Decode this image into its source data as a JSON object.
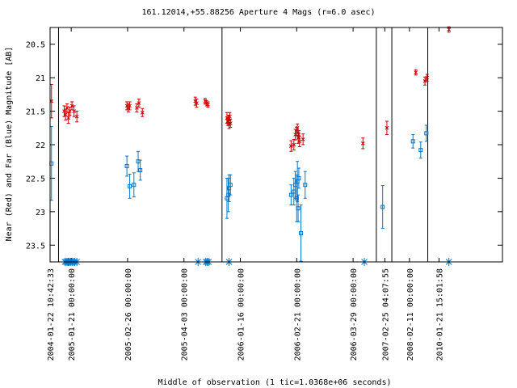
{
  "chart_data": {
    "type": "scatter",
    "title": "161.12014,+55.88256   Aperture 4 Mags (r=6.0 asec)",
    "xlabel": "Middle of observation (1 tic=1.0368e+06 seconds)",
    "ylabel": "Near (Red) and Far (Blue) Magnitude [AB]",
    "y_inverted": true,
    "ylim": [
      23.75,
      20.25
    ],
    "xlim": [
      0,
      64.2
    ],
    "y_ticks": [
      20.5,
      21,
      21.5,
      22,
      22.5,
      23,
      23.5
    ],
    "y_tick_labels": [
      "20.5",
      "21",
      "21.5",
      "22",
      "22.5",
      "23",
      "23.5"
    ],
    "x_ticks": [
      {
        "x": 0.0,
        "label": "2004-01-22 10:42:33"
      },
      {
        "x": 3.0,
        "label": "2005-01-21 00:00:00"
      },
      {
        "x": 11.0,
        "label": "2005-02-26 00:00:00"
      },
      {
        "x": 19.0,
        "label": "2005-04-03 00:00:00"
      },
      {
        "x": 27.0,
        "label": "2006-01-16 00:00:00"
      },
      {
        "x": 35.0,
        "label": "2006-02-21 00:00:00"
      },
      {
        "x": 43.0,
        "label": "2006-03-29 00:00:00"
      },
      {
        "x": 47.5,
        "label": "2007-02-25 04:07:55"
      },
      {
        "x": 51.0,
        "label": "2008-02-11 00:00:00"
      },
      {
        "x": 55.2,
        "label": "2010-01-21 15:01:58"
      }
    ],
    "segment_breaks": [
      1.2,
      24.4,
      46.3,
      48.5,
      53.6
    ],
    "series": [
      {
        "color": "#cc0000",
        "marker": "x",
        "points": [
          [
            0.2,
            21.35,
            0.25
          ],
          [
            2.0,
            21.5,
            0.08
          ],
          [
            2.2,
            21.55,
            0.08
          ],
          [
            2.4,
            21.45,
            0.06
          ],
          [
            2.6,
            21.6,
            0.08
          ],
          [
            2.8,
            21.5,
            0.06
          ],
          [
            3.1,
            21.42,
            0.06
          ],
          [
            3.4,
            21.5,
            0.08
          ],
          [
            3.8,
            21.58,
            0.08
          ],
          [
            10.9,
            21.42,
            0.06
          ],
          [
            11.1,
            21.45,
            0.06
          ],
          [
            11.3,
            21.42,
            0.06
          ],
          [
            12.3,
            21.45,
            0.06
          ],
          [
            12.6,
            21.38,
            0.06
          ],
          [
            13.1,
            21.52,
            0.06
          ],
          [
            20.6,
            21.35,
            0.06
          ],
          [
            20.8,
            21.38,
            0.06
          ],
          [
            22.0,
            21.35,
            0.04
          ],
          [
            22.2,
            21.38,
            0.04
          ],
          [
            22.4,
            21.4,
            0.04
          ],
          [
            25.1,
            21.6,
            0.08
          ],
          [
            25.2,
            21.65,
            0.06
          ],
          [
            25.3,
            21.62,
            0.06
          ],
          [
            25.4,
            21.7,
            0.06
          ],
          [
            25.5,
            21.58,
            0.06
          ],
          [
            25.6,
            21.68,
            0.06
          ],
          [
            34.2,
            22.02,
            0.08
          ],
          [
            34.6,
            22.0,
            0.08
          ],
          [
            34.8,
            21.85,
            0.08
          ],
          [
            35.0,
            21.8,
            0.06
          ],
          [
            35.1,
            21.75,
            0.06
          ],
          [
            35.2,
            21.9,
            0.08
          ],
          [
            35.3,
            21.85,
            0.06
          ],
          [
            35.4,
            21.95,
            0.08
          ],
          [
            35.9,
            21.92,
            0.08
          ],
          [
            44.4,
            21.98,
            0.08
          ],
          [
            47.8,
            21.75,
            0.1
          ],
          [
            51.9,
            20.92,
            0.04
          ],
          [
            53.2,
            21.05,
            0.06
          ],
          [
            53.5,
            21.0,
            0.05
          ],
          [
            56.6,
            20.28,
            0.04
          ]
        ]
      },
      {
        "color": "#0077cc",
        "marker": "square",
        "points": [
          [
            0.2,
            22.28,
            0.55
          ],
          [
            10.9,
            22.32,
            0.15
          ],
          [
            11.3,
            22.62,
            0.18
          ],
          [
            11.9,
            22.6,
            0.18
          ],
          [
            12.5,
            22.25,
            0.15
          ],
          [
            12.8,
            22.38,
            0.15
          ],
          [
            25.1,
            22.8,
            0.3
          ],
          [
            25.3,
            22.75,
            0.25
          ],
          [
            25.4,
            22.65,
            0.2
          ],
          [
            25.6,
            22.6,
            0.15
          ],
          [
            34.2,
            22.75,
            0.15
          ],
          [
            34.6,
            22.7,
            0.2
          ],
          [
            34.8,
            22.6,
            0.2
          ],
          [
            35.0,
            22.8,
            0.35
          ],
          [
            35.1,
            22.55,
            0.3
          ],
          [
            35.2,
            22.95,
            0.2
          ],
          [
            35.3,
            22.5,
            0.15
          ],
          [
            35.6,
            23.32,
            0.42
          ],
          [
            36.2,
            22.6,
            0.2
          ],
          [
            47.2,
            22.93,
            0.32
          ],
          [
            51.5,
            21.95,
            0.1
          ],
          [
            52.6,
            22.08,
            0.12
          ],
          [
            53.4,
            21.83,
            0.12
          ]
        ]
      }
    ],
    "limit_markers": {
      "color": "#0077cc",
      "marker": "asterisk",
      "y": 23.75,
      "x": [
        2.1,
        2.3,
        2.5,
        2.6,
        2.7,
        2.9,
        3.1,
        3.3,
        3.5,
        3.8,
        21.0,
        22.1,
        22.3,
        22.5,
        25.4,
        44.6,
        56.6
      ]
    }
  }
}
